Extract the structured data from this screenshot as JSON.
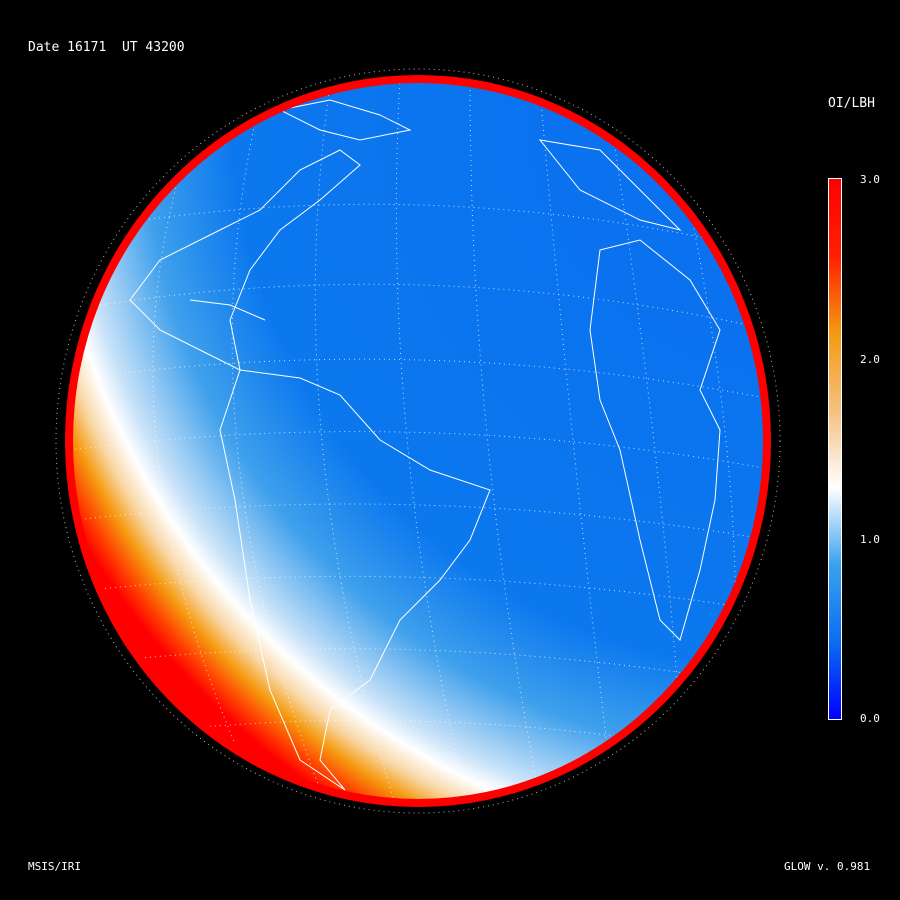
{
  "header": {
    "date_label": "Date 16171",
    "ut_label": "UT 43200"
  },
  "colorbar": {
    "title": "OI/LBH",
    "ticks": [
      "3.0",
      "2.0",
      "1.0",
      "0.0"
    ],
    "range": [
      0,
      3
    ],
    "colors": [
      "#0000ff",
      "#0a6ef0",
      "#3aa2ee",
      "#ffffff",
      "#f5c080",
      "#f59a10",
      "#ff2000",
      "#ff0000"
    ]
  },
  "footer": {
    "model_label": "MSIS/IRI",
    "version_label": "GLOW v. 0.981"
  }
}
